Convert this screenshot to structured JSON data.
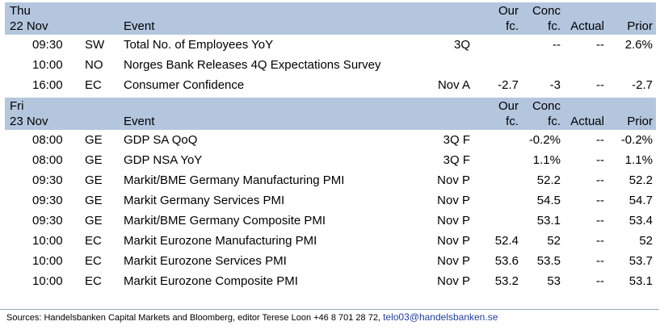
{
  "sections": [
    {
      "day": "Thu",
      "date": "22 Nov",
      "headers": {
        "event": "Event",
        "our_top": "Our",
        "our_bottom": "fc.",
        "conc_top": "Conc",
        "conc_bottom": "fc.",
        "actual": "Actual",
        "prior": "Prior"
      },
      "rows": [
        {
          "time": "09:30",
          "code": "SW",
          "event": "Total No. of Employees YoY",
          "period": "3Q",
          "our": "",
          "conc": "--",
          "actual": "--",
          "prior": "2.6%"
        },
        {
          "time": "10:00",
          "code": "NO",
          "event": "Norges Bank Releases 4Q Expectations Survey",
          "period": "",
          "our": "",
          "conc": "",
          "actual": "",
          "prior": ""
        },
        {
          "time": "16:00",
          "code": "EC",
          "event": "Consumer Confidence",
          "period": "Nov A",
          "our": "-2.7",
          "conc": "-3",
          "actual": "--",
          "prior": "-2.7"
        }
      ]
    },
    {
      "day": "Fri",
      "date": "23 Nov",
      "headers": {
        "event": "Event",
        "our_top": "Our",
        "our_bottom": "fc.",
        "conc_top": "Conc",
        "conc_bottom": "fc.",
        "actual": "Actual",
        "prior": "Prior"
      },
      "rows": [
        {
          "time": "08:00",
          "code": "GE",
          "event": "GDP SA QoQ",
          "period": "3Q F",
          "our": "",
          "conc": "-0.2%",
          "actual": "--",
          "prior": "-0.2%"
        },
        {
          "time": "08:00",
          "code": "GE",
          "event": "GDP NSA YoY",
          "period": "3Q F",
          "our": "",
          "conc": "1.1%",
          "actual": "--",
          "prior": "1.1%"
        },
        {
          "time": "09:30",
          "code": "GE",
          "event": "Markit/BME Germany Manufacturing PMI",
          "period": "Nov P",
          "our": "",
          "conc": "52.2",
          "actual": "--",
          "prior": "52.2"
        },
        {
          "time": "09:30",
          "code": "GE",
          "event": "Markit Germany Services PMI",
          "period": "Nov P",
          "our": "",
          "conc": "54.5",
          "actual": "--",
          "prior": "54.7"
        },
        {
          "time": "09:30",
          "code": "GE",
          "event": "Markit/BME Germany Composite PMI",
          "period": "Nov P",
          "our": "",
          "conc": "53.1",
          "actual": "--",
          "prior": "53.4"
        },
        {
          "time": "10:00",
          "code": "EC",
          "event": "Markit Eurozone Manufacturing PMI",
          "period": "Nov P",
          "our": "52.4",
          "conc": "52",
          "actual": "--",
          "prior": "52"
        },
        {
          "time": "10:00",
          "code": "EC",
          "event": "Markit Eurozone Services PMI",
          "period": "Nov P",
          "our": "53.6",
          "conc": "53.5",
          "actual": "--",
          "prior": "53.7"
        },
        {
          "time": "10:00",
          "code": "EC",
          "event": "Markit Eurozone Composite PMI",
          "period": "Nov P",
          "our": "53.2",
          "conc": "53",
          "actual": "--",
          "prior": "53.1"
        }
      ]
    }
  ],
  "footer": {
    "text": "Sources: Handelsbanken Capital Markets and Bloomberg, editor Terese Loon +46 8 701 28 72, ",
    "email": "telo03@handelsbanken.se"
  }
}
